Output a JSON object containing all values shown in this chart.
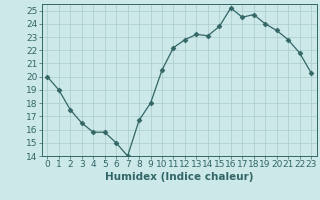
{
  "x": [
    0,
    1,
    2,
    3,
    4,
    5,
    6,
    7,
    8,
    9,
    10,
    11,
    12,
    13,
    14,
    15,
    16,
    17,
    18,
    19,
    20,
    21,
    22,
    23
  ],
  "y": [
    20,
    19,
    17.5,
    16.5,
    15.8,
    15.8,
    15,
    14,
    16.7,
    18,
    20.5,
    22.2,
    22.8,
    23.2,
    23.1,
    23.8,
    25.2,
    24.5,
    24.7,
    24,
    23.5,
    22.8,
    21.8,
    20.3
  ],
  "xlabel": "Humidex (Indice chaleur)",
  "ylim": [
    14,
    25.5
  ],
  "xlim": [
    -0.5,
    23.5
  ],
  "yticks": [
    14,
    15,
    16,
    17,
    18,
    19,
    20,
    21,
    22,
    23,
    24,
    25
  ],
  "xticks": [
    0,
    1,
    2,
    3,
    4,
    5,
    6,
    7,
    8,
    9,
    10,
    11,
    12,
    13,
    14,
    15,
    16,
    17,
    18,
    19,
    20,
    21,
    22,
    23
  ],
  "line_color": "#336666",
  "marker": "D",
  "marker_size": 2.5,
  "bg_color": "#cce8e8",
  "grid_color": "#aacccc",
  "axes_color": "#336666",
  "tick_color": "#336666",
  "label_color": "#336666",
  "font_size_axis": 6.5,
  "font_size_xlabel": 7.5
}
